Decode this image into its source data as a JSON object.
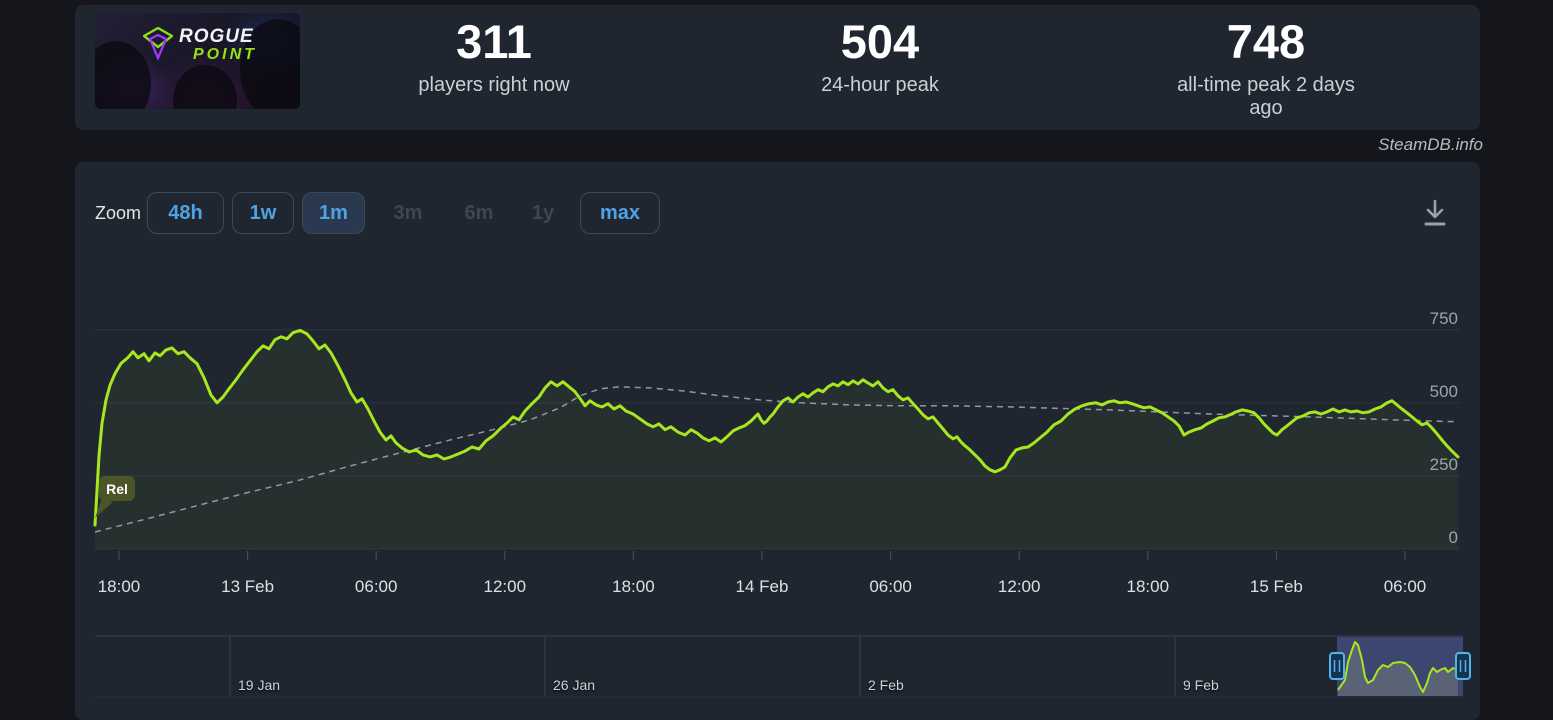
{
  "header": {
    "capsule": {
      "logo_line1": "ROGUE",
      "logo_line2": "POINT"
    },
    "stats": [
      {
        "value": "311",
        "label": "players right now"
      },
      {
        "value": "504",
        "label": "24-hour peak"
      },
      {
        "value": "748",
        "label": "all-time peak 2 days ago"
      }
    ]
  },
  "watermark": "SteamDB.info",
  "toolbar": {
    "zoom_label": "Zoom",
    "buttons": [
      {
        "label": "48h",
        "state": "enabled"
      },
      {
        "label": "1w",
        "state": "enabled"
      },
      {
        "label": "1m",
        "state": "active"
      },
      {
        "label": "3m",
        "state": "disabled"
      },
      {
        "label": "6m",
        "state": "disabled"
      },
      {
        "label": "1y",
        "state": "disabled"
      },
      {
        "label": "max",
        "state": "enabled"
      }
    ]
  },
  "chart_data": {
    "type": "line",
    "title": "",
    "xlabel": "",
    "ylabel": "",
    "ylim": [
      0,
      1007
    ],
    "grid": "horizontal",
    "legend": "none",
    "y_ticks": [
      750,
      500,
      250,
      0
    ],
    "x_tick_labels": [
      "18:00",
      "13 Feb",
      "06:00",
      "12:00",
      "18:00",
      "14 Feb",
      "06:00",
      "12:00",
      "18:00",
      "15 Feb",
      "06:00"
    ],
    "annotations": [
      {
        "label": "Rel"
      }
    ],
    "series": [
      {
        "name": "players",
        "color": "#a6e71f",
        "points": [
          [
            95,
            82
          ],
          [
            97,
            200
          ],
          [
            99,
            320
          ],
          [
            102,
            430
          ],
          [
            106,
            510
          ],
          [
            110,
            560
          ],
          [
            115,
            600
          ],
          [
            121,
            635
          ],
          [
            128,
            655
          ],
          [
            133,
            675
          ],
          [
            138,
            654
          ],
          [
            144,
            668
          ],
          [
            149,
            644
          ],
          [
            155,
            671
          ],
          [
            160,
            661
          ],
          [
            166,
            681
          ],
          [
            172,
            688
          ],
          [
            178,
            668
          ],
          [
            184,
            675
          ],
          [
            190,
            654
          ],
          [
            197,
            634
          ],
          [
            204,
            586
          ],
          [
            211,
            527
          ],
          [
            217,
            500
          ],
          [
            223,
            520
          ],
          [
            229,
            548
          ],
          [
            236,
            579
          ],
          [
            243,
            613
          ],
          [
            250,
            644
          ],
          [
            257,
            675
          ],
          [
            263,
            695
          ],
          [
            269,
            685
          ],
          [
            275,
            716
          ],
          [
            281,
            726
          ],
          [
            287,
            719
          ],
          [
            293,
            740
          ],
          [
            300,
            748
          ],
          [
            307,
            736
          ],
          [
            313,
            712
          ],
          [
            319,
            685
          ],
          [
            325,
            698
          ],
          [
            331,
            671
          ],
          [
            338,
            627
          ],
          [
            345,
            579
          ],
          [
            351,
            534
          ],
          [
            357,
            503
          ],
          [
            362,
            514
          ],
          [
            368,
            479
          ],
          [
            374,
            438
          ],
          [
            380,
            400
          ],
          [
            386,
            373
          ],
          [
            391,
            387
          ],
          [
            396,
            363
          ],
          [
            402,
            346
          ],
          [
            409,
            332
          ],
          [
            416,
            339
          ],
          [
            423,
            322
          ],
          [
            430,
            315
          ],
          [
            437,
            322
          ],
          [
            444,
            308
          ],
          [
            451,
            315
          ],
          [
            458,
            325
          ],
          [
            465,
            335
          ],
          [
            472,
            349
          ],
          [
            479,
            342
          ],
          [
            486,
            370
          ],
          [
            493,
            387
          ],
          [
            500,
            411
          ],
          [
            507,
            431
          ],
          [
            513,
            452
          ],
          [
            519,
            442
          ],
          [
            525,
            472
          ],
          [
            532,
            497
          ],
          [
            539,
            520
          ],
          [
            545,
            551
          ],
          [
            551,
            572
          ],
          [
            557,
            558
          ],
          [
            563,
            572
          ],
          [
            569,
            555
          ],
          [
            575,
            538
          ],
          [
            581,
            510
          ],
          [
            585,
            490
          ],
          [
            590,
            507
          ],
          [
            596,
            493
          ],
          [
            602,
            486
          ],
          [
            608,
            497
          ],
          [
            614,
            479
          ],
          [
            620,
            490
          ],
          [
            626,
            472
          ],
          [
            633,
            462
          ],
          [
            640,
            445
          ],
          [
            647,
            428
          ],
          [
            653,
            418
          ],
          [
            659,
            428
          ],
          [
            665,
            408
          ],
          [
            671,
            418
          ],
          [
            678,
            400
          ],
          [
            685,
            390
          ],
          [
            691,
            408
          ],
          [
            697,
            397
          ],
          [
            703,
            380
          ],
          [
            709,
            370
          ],
          [
            715,
            380
          ],
          [
            721,
            366
          ],
          [
            727,
            384
          ],
          [
            733,
            404
          ],
          [
            739,
            414
          ],
          [
            745,
            422
          ],
          [
            751,
            438
          ],
          [
            755,
            452
          ],
          [
            758,
            462
          ],
          [
            761,
            442
          ],
          [
            764,
            430
          ],
          [
            767,
            438
          ],
          [
            770,
            452
          ],
          [
            773,
            462
          ],
          [
            778,
            486
          ],
          [
            783,
            507
          ],
          [
            788,
            517
          ],
          [
            793,
            503
          ],
          [
            798,
            520
          ],
          [
            803,
            531
          ],
          [
            808,
            520
          ],
          [
            813,
            534
          ],
          [
            818,
            545
          ],
          [
            823,
            538
          ],
          [
            828,
            555
          ],
          [
            833,
            565
          ],
          [
            838,
            558
          ],
          [
            843,
            572
          ],
          [
            848,
            562
          ],
          [
            853,
            575
          ],
          [
            858,
            565
          ],
          [
            863,
            579
          ],
          [
            868,
            568
          ],
          [
            873,
            558
          ],
          [
            878,
            572
          ],
          [
            883,
            551
          ],
          [
            888,
            538
          ],
          [
            893,
            545
          ],
          [
            898,
            524
          ],
          [
            903,
            510
          ],
          [
            908,
            517
          ],
          [
            913,
            497
          ],
          [
            918,
            479
          ],
          [
            923,
            459
          ],
          [
            928,
            445
          ],
          [
            933,
            452
          ],
          [
            938,
            431
          ],
          [
            943,
            411
          ],
          [
            948,
            390
          ],
          [
            953,
            377
          ],
          [
            957,
            384
          ],
          [
            961,
            366
          ],
          [
            965,
            353
          ],
          [
            970,
            339
          ],
          [
            975,
            322
          ],
          [
            980,
            305
          ],
          [
            985,
            284
          ],
          [
            990,
            271
          ],
          [
            995,
            264
          ],
          [
            1000,
            271
          ],
          [
            1005,
            281
          ],
          [
            1010,
            312
          ],
          [
            1016,
            339
          ],
          [
            1022,
            346
          ],
          [
            1028,
            349
          ],
          [
            1034,
            363
          ],
          [
            1040,
            380
          ],
          [
            1047,
            400
          ],
          [
            1054,
            425
          ],
          [
            1061,
            438
          ],
          [
            1068,
            462
          ],
          [
            1075,
            479
          ],
          [
            1082,
            490
          ],
          [
            1089,
            497
          ],
          [
            1096,
            500
          ],
          [
            1102,
            493
          ],
          [
            1108,
            503
          ],
          [
            1114,
            507
          ],
          [
            1120,
            500
          ],
          [
            1126,
            503
          ],
          [
            1132,
            497
          ],
          [
            1138,
            490
          ],
          [
            1144,
            483
          ],
          [
            1150,
            486
          ],
          [
            1156,
            476
          ],
          [
            1162,
            466
          ],
          [
            1168,
            452
          ],
          [
            1174,
            438
          ],
          [
            1179,
            421
          ],
          [
            1184,
            390
          ],
          [
            1189,
            400
          ],
          [
            1195,
            408
          ],
          [
            1201,
            414
          ],
          [
            1207,
            428
          ],
          [
            1213,
            438
          ],
          [
            1219,
            449
          ],
          [
            1225,
            452
          ],
          [
            1230,
            459
          ],
          [
            1236,
            469
          ],
          [
            1242,
            476
          ],
          [
            1248,
            472
          ],
          [
            1254,
            466
          ],
          [
            1259,
            449
          ],
          [
            1264,
            428
          ],
          [
            1269,
            411
          ],
          [
            1273,
            397
          ],
          [
            1277,
            390
          ],
          [
            1282,
            408
          ],
          [
            1287,
            421
          ],
          [
            1292,
            435
          ],
          [
            1297,
            449
          ],
          [
            1303,
            455
          ],
          [
            1309,
            466
          ],
          [
            1315,
            469
          ],
          [
            1321,
            462
          ],
          [
            1327,
            469
          ],
          [
            1333,
            479
          ],
          [
            1339,
            469
          ],
          [
            1345,
            476
          ],
          [
            1351,
            469
          ],
          [
            1357,
            472
          ],
          [
            1363,
            466
          ],
          [
            1369,
            469
          ],
          [
            1375,
            479
          ],
          [
            1381,
            486
          ],
          [
            1387,
            500
          ],
          [
            1392,
            507
          ],
          [
            1397,
            493
          ],
          [
            1402,
            479
          ],
          [
            1407,
            466
          ],
          [
            1412,
            452
          ],
          [
            1417,
            438
          ],
          [
            1422,
            425
          ],
          [
            1427,
            431
          ],
          [
            1432,
            414
          ],
          [
            1437,
            394
          ],
          [
            1442,
            373
          ],
          [
            1447,
            353
          ],
          [
            1452,
            335
          ],
          [
            1458,
            315
          ]
        ]
      },
      {
        "name": "trend",
        "color": "#9199a3",
        "style": "dashed",
        "points": [
          [
            95,
            58
          ],
          [
            150,
            106
          ],
          [
            200,
            151
          ],
          [
            250,
            195
          ],
          [
            300,
            236
          ],
          [
            350,
            284
          ],
          [
            400,
            329
          ],
          [
            450,
            373
          ],
          [
            500,
            414
          ],
          [
            530,
            442
          ],
          [
            560,
            483
          ],
          [
            580,
            524
          ],
          [
            600,
            548
          ],
          [
            620,
            555
          ],
          [
            650,
            551
          ],
          [
            683,
            541
          ],
          [
            720,
            524
          ],
          [
            760,
            510
          ],
          [
            800,
            500
          ],
          [
            850,
            493
          ],
          [
            900,
            490
          ],
          [
            950,
            490
          ],
          [
            1010,
            486
          ],
          [
            1110,
            476
          ],
          [
            1210,
            462
          ],
          [
            1310,
            452
          ],
          [
            1392,
            442
          ],
          [
            1458,
            435
          ]
        ]
      }
    ]
  },
  "navigator": {
    "date_labels": [
      "19 Jan",
      "26 Jan",
      "2 Feb",
      "9 Feb"
    ],
    "selection_spark_points": [
      [
        1263,
        528
      ],
      [
        1270,
        518
      ],
      [
        1273,
        500
      ],
      [
        1277,
        488
      ],
      [
        1280,
        480
      ],
      [
        1283,
        483
      ],
      [
        1287,
        498
      ],
      [
        1290,
        515
      ],
      [
        1293,
        521
      ],
      [
        1298,
        518
      ],
      [
        1303,
        508
      ],
      [
        1308,
        503
      ],
      [
        1313,
        505
      ],
      [
        1318,
        501
      ],
      [
        1325,
        500
      ],
      [
        1330,
        501
      ],
      [
        1335,
        505
      ],
      [
        1340,
        513
      ],
      [
        1345,
        525
      ],
      [
        1348,
        530
      ],
      [
        1352,
        521
      ],
      [
        1355,
        511
      ],
      [
        1358,
        506
      ],
      [
        1362,
        510
      ],
      [
        1365,
        508
      ],
      [
        1370,
        506
      ],
      [
        1373,
        510
      ],
      [
        1378,
        506
      ],
      [
        1383,
        508
      ]
    ]
  },
  "colors": {
    "page_bg": "#14161c",
    "panel_bg": "#1f2630",
    "grid": "#2c3440",
    "tick": "#49525c",
    "x_tick_text": "#dbe0e3",
    "y_tick_text": "#9aa3ac",
    "line_green": "#a6e71f",
    "trend_gray": "#9199a3",
    "button_blue": "#4fa2e3",
    "button_disabled": "#3e4653",
    "rel_badge_bg": "#4b5527",
    "nav_line": "#39424e",
    "nav_label": "#ced3d8",
    "selection_fill": "#3d4670",
    "selection_under": "#5a6376",
    "handle_stroke": "#55b1ea",
    "handle_fill": "#16344f"
  }
}
